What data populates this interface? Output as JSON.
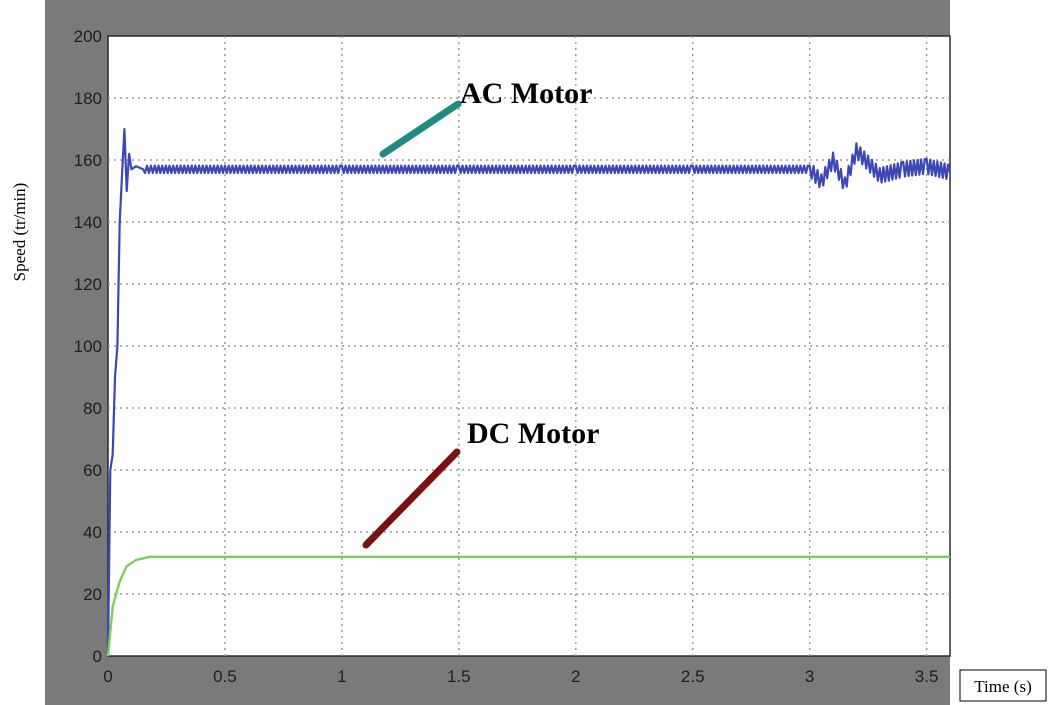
{
  "chart_data": {
    "type": "line",
    "title": "",
    "xlabel": "Time (s)",
    "ylabel": "Speed (tr/min)",
    "xlim": [
      0,
      3.6
    ],
    "ylim": [
      0,
      200
    ],
    "xticks": [
      "0",
      "0.5",
      "1",
      "1.5",
      "2",
      "2.5",
      "3",
      "3.5"
    ],
    "yticks": [
      "0",
      "20",
      "40",
      "60",
      "80",
      "100",
      "120",
      "140",
      "160",
      "180",
      "200"
    ],
    "grid": true,
    "annotations": [
      {
        "text": "AC Motor",
        "series": "ac",
        "color": "#1f8a80"
      },
      {
        "text": "DC Motor",
        "series": "dc",
        "color": "#7a1010"
      }
    ],
    "series": [
      {
        "key": "ac",
        "color": "#3d47b5",
        "x": [
          0,
          0.01,
          0.02,
          0.03,
          0.04,
          0.05,
          0.06,
          0.07,
          0.08,
          0.09,
          0.1,
          0.12,
          0.15,
          0.2,
          0.5,
          1,
          1.5,
          2,
          2.5,
          3.0,
          3.05,
          3.1,
          3.15,
          3.2,
          3.3,
          3.4,
          3.5,
          3.6
        ],
        "y": [
          0,
          60,
          65,
          90,
          100,
          140,
          155,
          170,
          150,
          162,
          157,
          158,
          157,
          157,
          157,
          157,
          157,
          157,
          157,
          157,
          153,
          160,
          152,
          163,
          155,
          157,
          158,
          156
        ]
      },
      {
        "key": "dc",
        "color": "#7ccf5f",
        "x": [
          0,
          0.02,
          0.05,
          0.08,
          0.12,
          0.18,
          0.25,
          0.5,
          1,
          1.5,
          2,
          2.5,
          3,
          3.5,
          3.6
        ],
        "y": [
          0,
          16,
          24,
          29,
          31,
          32,
          32,
          32,
          32,
          32,
          32,
          32,
          32,
          32,
          32
        ]
      }
    ]
  }
}
